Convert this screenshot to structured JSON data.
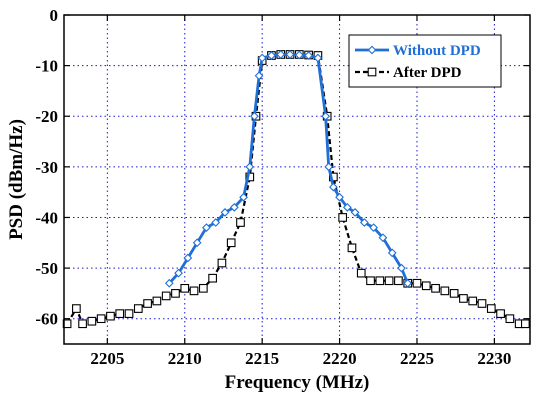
{
  "colors": {
    "without_dpd": "#1f6fd6",
    "after_dpd": "#000000",
    "grid": "#1a1ad0"
  },
  "chart_data": {
    "type": "line",
    "xlabel": "Frequency (MHz)",
    "ylabel": "PSD (dBm/Hz)",
    "xlim": [
      2202.2,
      2232.3
    ],
    "ylim": [
      -65,
      0
    ],
    "xticks": [
      2205,
      2210,
      2215,
      2220,
      2225,
      2230
    ],
    "yticks": [
      -10,
      -20,
      -30,
      -40,
      -50,
      -60
    ],
    "grid": true,
    "legend_position": "top-right",
    "series": [
      {
        "name": "Without DPD",
        "style": "solid",
        "marker": "diamond",
        "color": "#1f6fd6",
        "x": [
          2209.0,
          2209.6,
          2210.2,
          2210.8,
          2211.4,
          2212.0,
          2212.6,
          2213.2,
          2213.8,
          2214.2,
          2214.5,
          2214.8,
          2215.0,
          2215.6,
          2216.2,
          2216.8,
          2217.4,
          2218.0,
          2218.6,
          2219.1,
          2219.3,
          2219.6,
          2220.0,
          2220.5,
          2221.0,
          2221.6,
          2222.2,
          2222.8,
          2223.4,
          2224.0,
          2224.4
        ],
        "y": [
          -53,
          -51,
          -48,
          -45,
          -42,
          -41,
          -39,
          -38,
          -36,
          -30,
          -20,
          -12,
          -8.5,
          -8,
          -7.8,
          -7.8,
          -7.9,
          -8,
          -8.5,
          -20,
          -30,
          -34,
          -36,
          -38,
          -39,
          -41,
          -42,
          -44,
          -47,
          -50,
          -53
        ]
      },
      {
        "name": "After DPD",
        "style": "dashed",
        "marker": "square",
        "color": "#000000",
        "x": [
          2202.4,
          2203.0,
          2203.4,
          2204.0,
          2204.6,
          2205.2,
          2205.8,
          2206.4,
          2207.0,
          2207.6,
          2208.2,
          2208.8,
          2209.4,
          2210.0,
          2210.6,
          2211.2,
          2211.8,
          2212.4,
          2213.0,
          2213.6,
          2214.2,
          2214.6,
          2215.0,
          2215.6,
          2216.2,
          2216.8,
          2217.4,
          2218.0,
          2218.6,
          2219.2,
          2219.6,
          2220.2,
          2220.8,
          2221.4,
          2222.0,
          2222.6,
          2223.2,
          2223.8,
          2224.4,
          2225.0,
          2225.6,
          2226.2,
          2226.8,
          2227.4,
          2228.0,
          2228.6,
          2229.2,
          2229.8,
          2230.4,
          2231.0,
          2231.6,
          2232.0
        ],
        "y": [
          -61,
          -58,
          -61,
          -60.5,
          -60,
          -59.5,
          -59,
          -59,
          -58,
          -57,
          -56.5,
          -55.5,
          -55,
          -54,
          -54.5,
          -54,
          -52,
          -49,
          -45,
          -41,
          -32,
          -20,
          -9,
          -8,
          -7.8,
          -7.8,
          -7.8,
          -7.9,
          -8,
          -20,
          -32,
          -40,
          -46,
          -51,
          -52.5,
          -52.5,
          -52.5,
          -52.5,
          -53,
          -53,
          -53.5,
          -54,
          -54.5,
          -55,
          -56,
          -56.5,
          -57,
          -58,
          -59,
          -60,
          -61,
          -61
        ]
      }
    ]
  }
}
